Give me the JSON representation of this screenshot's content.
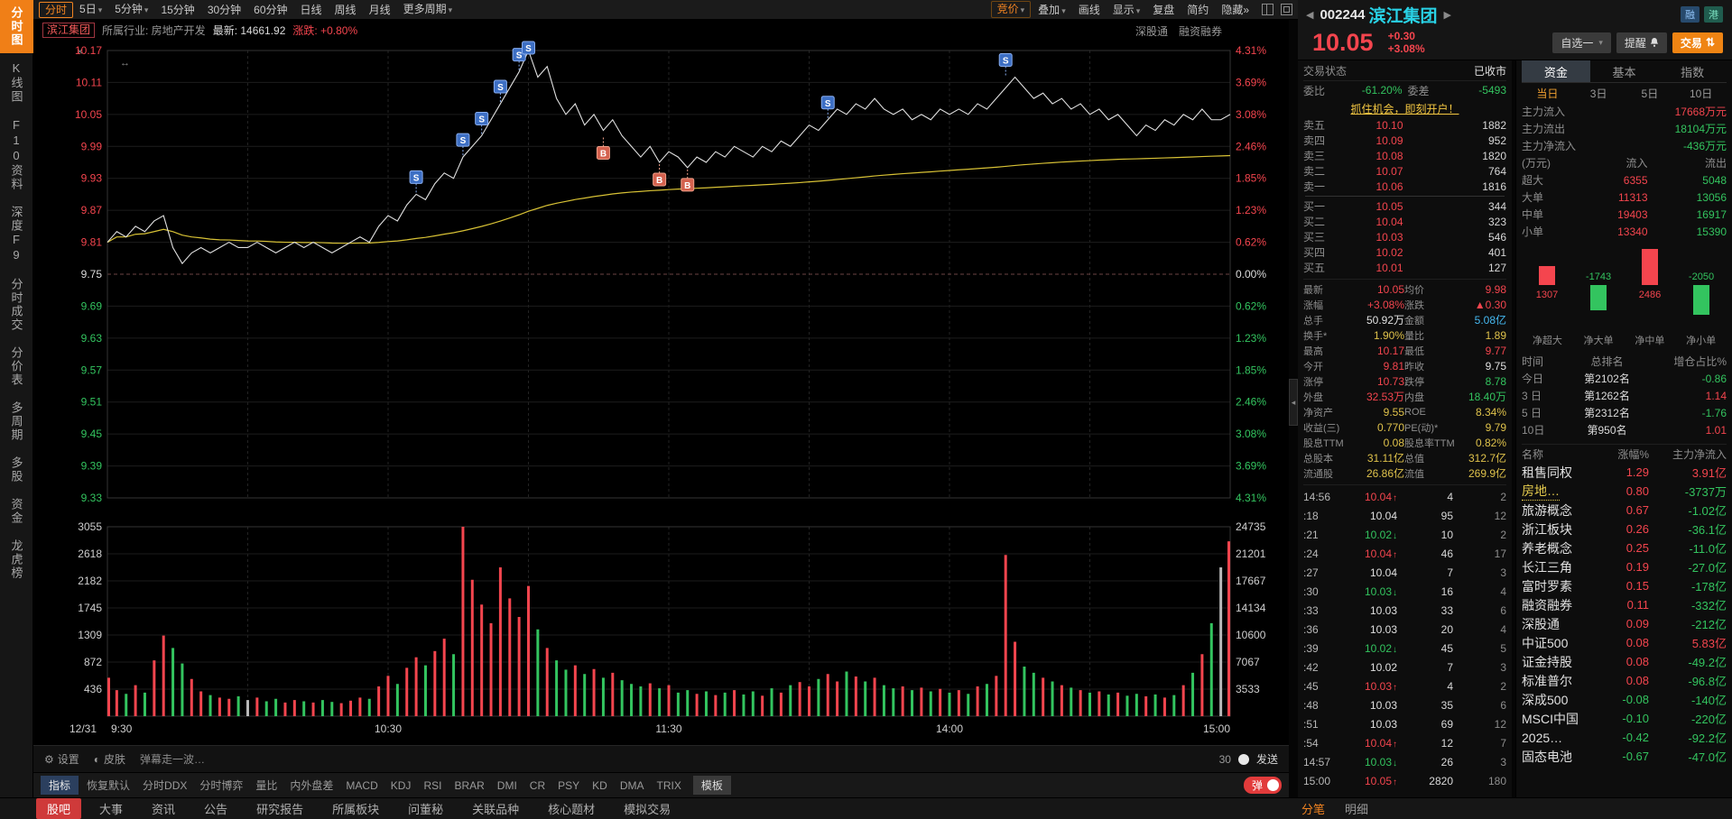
{
  "colors": {
    "up": "#f4454e",
    "down": "#33c45f",
    "flat": "#b8b8b8",
    "accent_orange": "#f08321",
    "name_cyan": "#29d2e6",
    "price_line": "#e0e0e0",
    "avg_line": "#d8c235",
    "marker_sell_bg": "#3d6fc4",
    "marker_sell_border": "#89aef0",
    "marker_buy_bg": "#d4614e",
    "marker_buy_border": "#f0a089"
  },
  "sidebar": {
    "items": [
      {
        "label": "分时图",
        "active": true
      },
      {
        "label": "K线图"
      },
      {
        "label": "F10资料"
      },
      {
        "label": "深度F9"
      },
      {
        "label": "分时成交"
      },
      {
        "label": "分价表"
      },
      {
        "label": "多周期"
      },
      {
        "label": "多股"
      },
      {
        "label": "资金"
      },
      {
        "label": "龙虎榜"
      }
    ]
  },
  "topbar": {
    "periods": [
      {
        "label": "分时",
        "active": true
      },
      {
        "label": "5日",
        "caret": true
      },
      {
        "label": "5分钟",
        "caret": true
      },
      {
        "label": "15分钟"
      },
      {
        "label": "30分钟"
      },
      {
        "label": "60分钟"
      },
      {
        "label": "日线"
      },
      {
        "label": "周线"
      },
      {
        "label": "月线"
      },
      {
        "label": "更多周期",
        "caret": true
      }
    ],
    "tools": [
      {
        "label": "竞价",
        "caret": true,
        "accent": true
      },
      {
        "label": "叠加",
        "caret": true
      },
      {
        "label": "画线"
      },
      {
        "label": "显示",
        "caret": true
      },
      {
        "label": "复盘"
      },
      {
        "label": "简约"
      },
      {
        "label": "隐藏»"
      }
    ]
  },
  "stock_header": {
    "code": "002244",
    "name": "滨江集团",
    "price": "10.05",
    "change": "+0.30",
    "change_pct": "+3.08%",
    "badges": [
      {
        "label": "融",
        "bg": "#274a6d",
        "fg": "#8fc1f5"
      },
      {
        "label": "港",
        "bg": "#205c4e",
        "fg": "#7be0c0"
      }
    ],
    "watch_btn": "自选一",
    "alert_btn": "提醒",
    "trade_btn": "交易"
  },
  "chart_header": {
    "name": "滨江集团",
    "industry_label": "所属行业: 房地产开发",
    "latest_label": "最新: 14661.92",
    "change_label": "涨跌: +0.80%",
    "tag1": "深股通",
    "tag2": "融资融券"
  },
  "chart_data": {
    "type": "line",
    "title": "滨江集团 分时走势",
    "prev_close": 9.75,
    "open": 9.81,
    "high": 10.17,
    "low": 9.77,
    "close": 10.05,
    "price_max": 10.17,
    "price_min": 9.33,
    "volume_max": 3055,
    "step_min": 2,
    "session_minutes": 240,
    "y_left": [
      "10.17",
      "10.11",
      "10.05",
      "9.99",
      "9.93",
      "9.87",
      "9.81",
      "9.75",
      "9.69",
      "9.63",
      "9.57",
      "9.51",
      "9.45",
      "9.39",
      "9.33"
    ],
    "y_right": [
      "4.31%",
      "3.69%",
      "3.08%",
      "2.46%",
      "1.85%",
      "1.23%",
      "0.62%",
      "0.00%",
      "0.62%",
      "1.23%",
      "1.85%",
      "2.46%",
      "3.08%",
      "3.69%",
      "4.31%"
    ],
    "vol_left": [
      "3055",
      "2618",
      "2182",
      "1745",
      "1309",
      "872",
      "436"
    ],
    "vol_left_vals": [
      3055,
      2618,
      2182,
      1745,
      1309,
      872,
      436
    ],
    "vol_right": [
      "24735",
      "21201",
      "17667",
      "14134",
      "10600",
      "7067",
      "3533"
    ],
    "x_labels": [
      "12/31",
      "9:30",
      "10:30",
      "11:30",
      "14:00",
      "15:00"
    ],
    "prices": [
      9.81,
      9.83,
      9.82,
      9.84,
      9.83,
      9.85,
      9.86,
      9.8,
      9.77,
      9.79,
      9.8,
      9.79,
      9.8,
      9.81,
      9.8,
      9.8,
      9.81,
      9.8,
      9.79,
      9.8,
      9.81,
      9.8,
      9.81,
      9.8,
      9.79,
      9.8,
      9.81,
      9.82,
      9.81,
      9.84,
      9.86,
      9.85,
      9.88,
      9.9,
      9.89,
      9.92,
      9.94,
      9.93,
      9.97,
      9.99,
      10.01,
      10.04,
      10.07,
      10.1,
      10.13,
      10.17,
      10.12,
      10.14,
      10.08,
      10.05,
      10.07,
      10.03,
      10.05,
      10.02,
      10.04,
      10.01,
      9.99,
      9.97,
      9.99,
      9.96,
      9.98,
      9.97,
      9.95,
      9.97,
      9.96,
      9.98,
      9.97,
      9.99,
      9.98,
      9.97,
      9.99,
      9.98,
      10.0,
      9.99,
      10.01,
      10.03,
      10.02,
      10.04,
      10.06,
      10.05,
      10.07,
      10.06,
      10.08,
      10.06,
      10.05,
      10.06,
      10.04,
      10.05,
      10.04,
      10.06,
      10.05,
      10.06,
      10.05,
      10.07,
      10.06,
      10.08,
      10.1,
      10.12,
      10.1,
      10.08,
      10.09,
      10.07,
      10.08,
      10.06,
      10.07,
      10.05,
      10.06,
      10.04,
      10.05,
      10.03,
      10.01,
      10.03,
      10.02,
      10.04,
      10.03,
      10.05,
      10.04,
      10.06,
      10.04,
      10.04,
      10.05
    ],
    "volumes": [
      620,
      420,
      360,
      500,
      380,
      900,
      1300,
      1100,
      850,
      600,
      400,
      340,
      300,
      280,
      320,
      260,
      300,
      240,
      280,
      220,
      260,
      240,
      220,
      260,
      230,
      210,
      250,
      300,
      280,
      480,
      650,
      520,
      780,
      950,
      820,
      1050,
      1250,
      1000,
      3055,
      2200,
      1800,
      1500,
      2400,
      1900,
      1600,
      2100,
      1400,
      1100,
      900,
      750,
      820,
      680,
      760,
      620,
      700,
      580,
      520,
      480,
      530,
      450,
      500,
      380,
      420,
      360,
      400,
      340,
      380,
      420,
      350,
      400,
      330,
      450,
      380,
      500,
      550,
      480,
      600,
      680,
      560,
      720,
      640,
      560,
      620,
      500,
      450,
      480,
      420,
      460,
      400,
      440,
      380,
      420,
      360,
      480,
      520,
      650,
      2600,
      1200,
      800,
      700,
      620,
      560,
      500,
      460,
      420,
      380,
      400,
      350,
      380,
      330,
      360,
      320,
      350,
      300,
      340,
      500,
      700,
      1000,
      1500,
      2400,
      2820
    ],
    "markers": [
      {
        "t": 66,
        "p": 9.9,
        "type": "S"
      },
      {
        "t": 76,
        "p": 9.97,
        "type": "S"
      },
      {
        "t": 80,
        "p": 10.01,
        "type": "S"
      },
      {
        "t": 84,
        "p": 10.07,
        "type": "S"
      },
      {
        "t": 88,
        "p": 10.13,
        "type": "S"
      },
      {
        "t": 90,
        "p": 10.17,
        "type": "S"
      },
      {
        "t": 154,
        "p": 10.04,
        "type": "S"
      },
      {
        "t": 192,
        "p": 10.12,
        "type": "S"
      },
      {
        "t": 106,
        "p": 10.01,
        "type": "B"
      },
      {
        "t": 118,
        "p": 9.96,
        "type": "B"
      },
      {
        "t": 124,
        "p": 9.95,
        "type": "B"
      }
    ]
  },
  "barrage_bar": {
    "settings": "设置",
    "skin": "皮肤",
    "placeholder": "弹幕走一波…",
    "count": "30",
    "send": "发送"
  },
  "indicator_bar": {
    "lead": "指标",
    "items": [
      "恢复默认",
      "分时DDX",
      "分时博弈",
      "量比",
      "内外盘差",
      "MACD",
      "KDJ",
      "RSI",
      "BRAR",
      "DMI",
      "CR",
      "PSY",
      "KD",
      "DMA",
      "TRIX"
    ],
    "template_label": "模板",
    "danmu": "弹"
  },
  "bottom_tabs": {
    "left": [
      {
        "label": "股吧",
        "active": true
      },
      {
        "label": "大事"
      },
      {
        "label": "资讯"
      },
      {
        "label": "公告"
      },
      {
        "label": "研究报告"
      },
      {
        "label": "所属板块"
      },
      {
        "label": "问董秘"
      },
      {
        "label": "关联品种"
      },
      {
        "label": "核心题材"
      },
      {
        "label": "模拟交易"
      }
    ],
    "right": [
      {
        "label": "分笔",
        "active": true
      },
      {
        "label": "明细"
      }
    ]
  },
  "panel1": {
    "status_label": "交易状态",
    "status_value": "已收市",
    "weibi_label": "委比",
    "weibi_value": "-61.20%",
    "weicha_label": "委差",
    "weicha_value": "-5493",
    "ad": "抓住机会，即刻开户！",
    "asks": [
      [
        "卖五",
        "10.10",
        "1882"
      ],
      [
        "卖四",
        "10.09",
        "952"
      ],
      [
        "卖三",
        "10.08",
        "1820"
      ],
      [
        "卖二",
        "10.07",
        "764"
      ],
      [
        "卖一",
        "10.06",
        "1816"
      ]
    ],
    "bids": [
      [
        "买一",
        "10.05",
        "344"
      ],
      [
        "买二",
        "10.04",
        "323"
      ],
      [
        "买三",
        "10.03",
        "546"
      ],
      [
        "买四",
        "10.02",
        "401"
      ],
      [
        "买五",
        "10.01",
        "127"
      ]
    ],
    "stats": [
      [
        "最新",
        "10.05",
        "r",
        "均价",
        "9.98",
        "r"
      ],
      [
        "涨幅",
        "+3.08%",
        "r",
        "涨跌",
        "▲0.30",
        "r"
      ],
      [
        "总手",
        "50.92万",
        "w",
        "金额",
        "5.08亿",
        "b"
      ],
      [
        "换手*",
        "1.90%",
        "y",
        "量比",
        "1.89",
        "y"
      ],
      [
        "最高",
        "10.17",
        "r",
        "最低",
        "9.77",
        "r"
      ],
      [
        "今开",
        "9.81",
        "r",
        "昨收",
        "9.75",
        "w"
      ],
      [
        "涨停",
        "10.73",
        "r",
        "跌停",
        "8.78",
        "g"
      ],
      [
        "外盘",
        "32.53万",
        "r",
        "内盘",
        "18.40万",
        "g"
      ],
      [
        "净资产",
        "9.55",
        "y",
        "ROE",
        "8.34%",
        "y"
      ],
      [
        "收益(三)",
        "0.770",
        "y",
        "PE(动)*",
        "9.79",
        "y"
      ],
      [
        "股息TTM",
        "0.08",
        "y",
        "股息率TTM",
        "0.82%",
        "y"
      ],
      [
        "总股本",
        "31.11亿",
        "y",
        "总值",
        "312.7亿",
        "y"
      ],
      [
        "流通股",
        "26.86亿",
        "y",
        "流值",
        "269.9亿",
        "y"
      ]
    ],
    "ticks": [
      [
        "14:56",
        "10.04",
        "4",
        "2",
        "r"
      ],
      [
        ":18",
        "10.04",
        "95",
        "12",
        "w"
      ],
      [
        ":21",
        "10.02",
        "10",
        "2",
        "g"
      ],
      [
        ":24",
        "10.04",
        "46",
        "17",
        "r"
      ],
      [
        ":27",
        "10.04",
        "7",
        "3",
        "w"
      ],
      [
        ":30",
        "10.03",
        "16",
        "4",
        "g"
      ],
      [
        ":33",
        "10.03",
        "33",
        "6",
        "w"
      ],
      [
        ":36",
        "10.03",
        "20",
        "4",
        "w"
      ],
      [
        ":39",
        "10.02",
        "45",
        "5",
        "g"
      ],
      [
        ":42",
        "10.02",
        "7",
        "3",
        "w"
      ],
      [
        ":45",
        "10.03",
        "4",
        "2",
        "r"
      ],
      [
        ":48",
        "10.03",
        "35",
        "6",
        "w"
      ],
      [
        ":51",
        "10.03",
        "69",
        "12",
        "w"
      ],
      [
        ":54",
        "10.04",
        "12",
        "7",
        "r"
      ],
      [
        "14:57",
        "10.03",
        "26",
        "3",
        "g"
      ],
      [
        "15:00",
        "10.05",
        "2820",
        "180",
        "r"
      ]
    ]
  },
  "panel2": {
    "tabs": [
      {
        "label": "资金",
        "active": true
      },
      {
        "label": "基本"
      },
      {
        "label": "指数"
      }
    ],
    "subtabs": [
      {
        "label": "当日",
        "active": true
      },
      {
        "label": "3日"
      },
      {
        "label": "5日"
      },
      {
        "label": "10日"
      }
    ],
    "flow_rows": [
      {
        "k": "主力流入",
        "v": "17668万元",
        "c": "r"
      },
      {
        "k": "主力流出",
        "v": "18104万元",
        "c": "g"
      },
      {
        "k": "主力净流入",
        "v": "-436万元",
        "c": "g"
      }
    ],
    "flow_table": {
      "header": [
        "(万元)",
        "流入",
        "流出"
      ],
      "rows": [
        [
          "超大",
          "6355",
          "5048"
        ],
        [
          "大单",
          "11313",
          "13056"
        ],
        [
          "中单",
          "19403",
          "16917"
        ],
        [
          "小单",
          "13340",
          "15390"
        ]
      ]
    },
    "net_bars": {
      "labels": [
        "净超大",
        "净大单",
        "净中单",
        "净小单"
      ],
      "values": [
        1307,
        -1743,
        2486,
        -2050
      ]
    },
    "rank_table": {
      "header": [
        "时间",
        "总排名",
        "增仓占比%"
      ],
      "rows": [
        [
          "今日",
          "第2102名",
          "-0.86"
        ],
        [
          "3 日",
          "第1262名",
          "1.14"
        ],
        [
          "5 日",
          "第2312名",
          "-1.76"
        ],
        [
          "10日",
          "第950名",
          "1.01"
        ]
      ]
    },
    "sector_table": {
      "header": [
        "名称",
        "涨幅%",
        "主力净流入"
      ],
      "rows": [
        [
          "租售同权",
          "1.29",
          "3.91亿",
          "r",
          "r",
          ""
        ],
        [
          "房地…",
          "0.80",
          "-3737万",
          "r",
          "g",
          "hl"
        ],
        [
          "旅游概念",
          "0.67",
          "-1.02亿",
          "r",
          "g",
          ""
        ],
        [
          "浙江板块",
          "0.26",
          "-36.1亿",
          "r",
          "g",
          ""
        ],
        [
          "养老概念",
          "0.25",
          "-11.0亿",
          "r",
          "g",
          ""
        ],
        [
          "长江三角",
          "0.19",
          "-27.0亿",
          "r",
          "g",
          ""
        ],
        [
          "富时罗素",
          "0.15",
          "-178亿",
          "r",
          "g",
          ""
        ],
        [
          "融资融券",
          "0.11",
          "-332亿",
          "r",
          "g",
          ""
        ],
        [
          "深股通",
          "0.09",
          "-212亿",
          "r",
          "g",
          ""
        ],
        [
          "中证500",
          "0.08",
          "5.83亿",
          "r",
          "r",
          ""
        ],
        [
          "证金持股",
          "0.08",
          "-49.2亿",
          "r",
          "g",
          ""
        ],
        [
          "标准普尔",
          "0.08",
          "-96.8亿",
          "r",
          "g",
          ""
        ],
        [
          "深成500",
          "-0.08",
          "-140亿",
          "g",
          "g",
          ""
        ],
        [
          "MSCI中国",
          "-0.10",
          "-220亿",
          "g",
          "g",
          ""
        ],
        [
          "2025…",
          "-0.42",
          "-92.2亿",
          "g",
          "g",
          ""
        ],
        [
          "固态电池",
          "-0.67",
          "-47.0亿",
          "g",
          "g",
          ""
        ]
      ]
    }
  }
}
